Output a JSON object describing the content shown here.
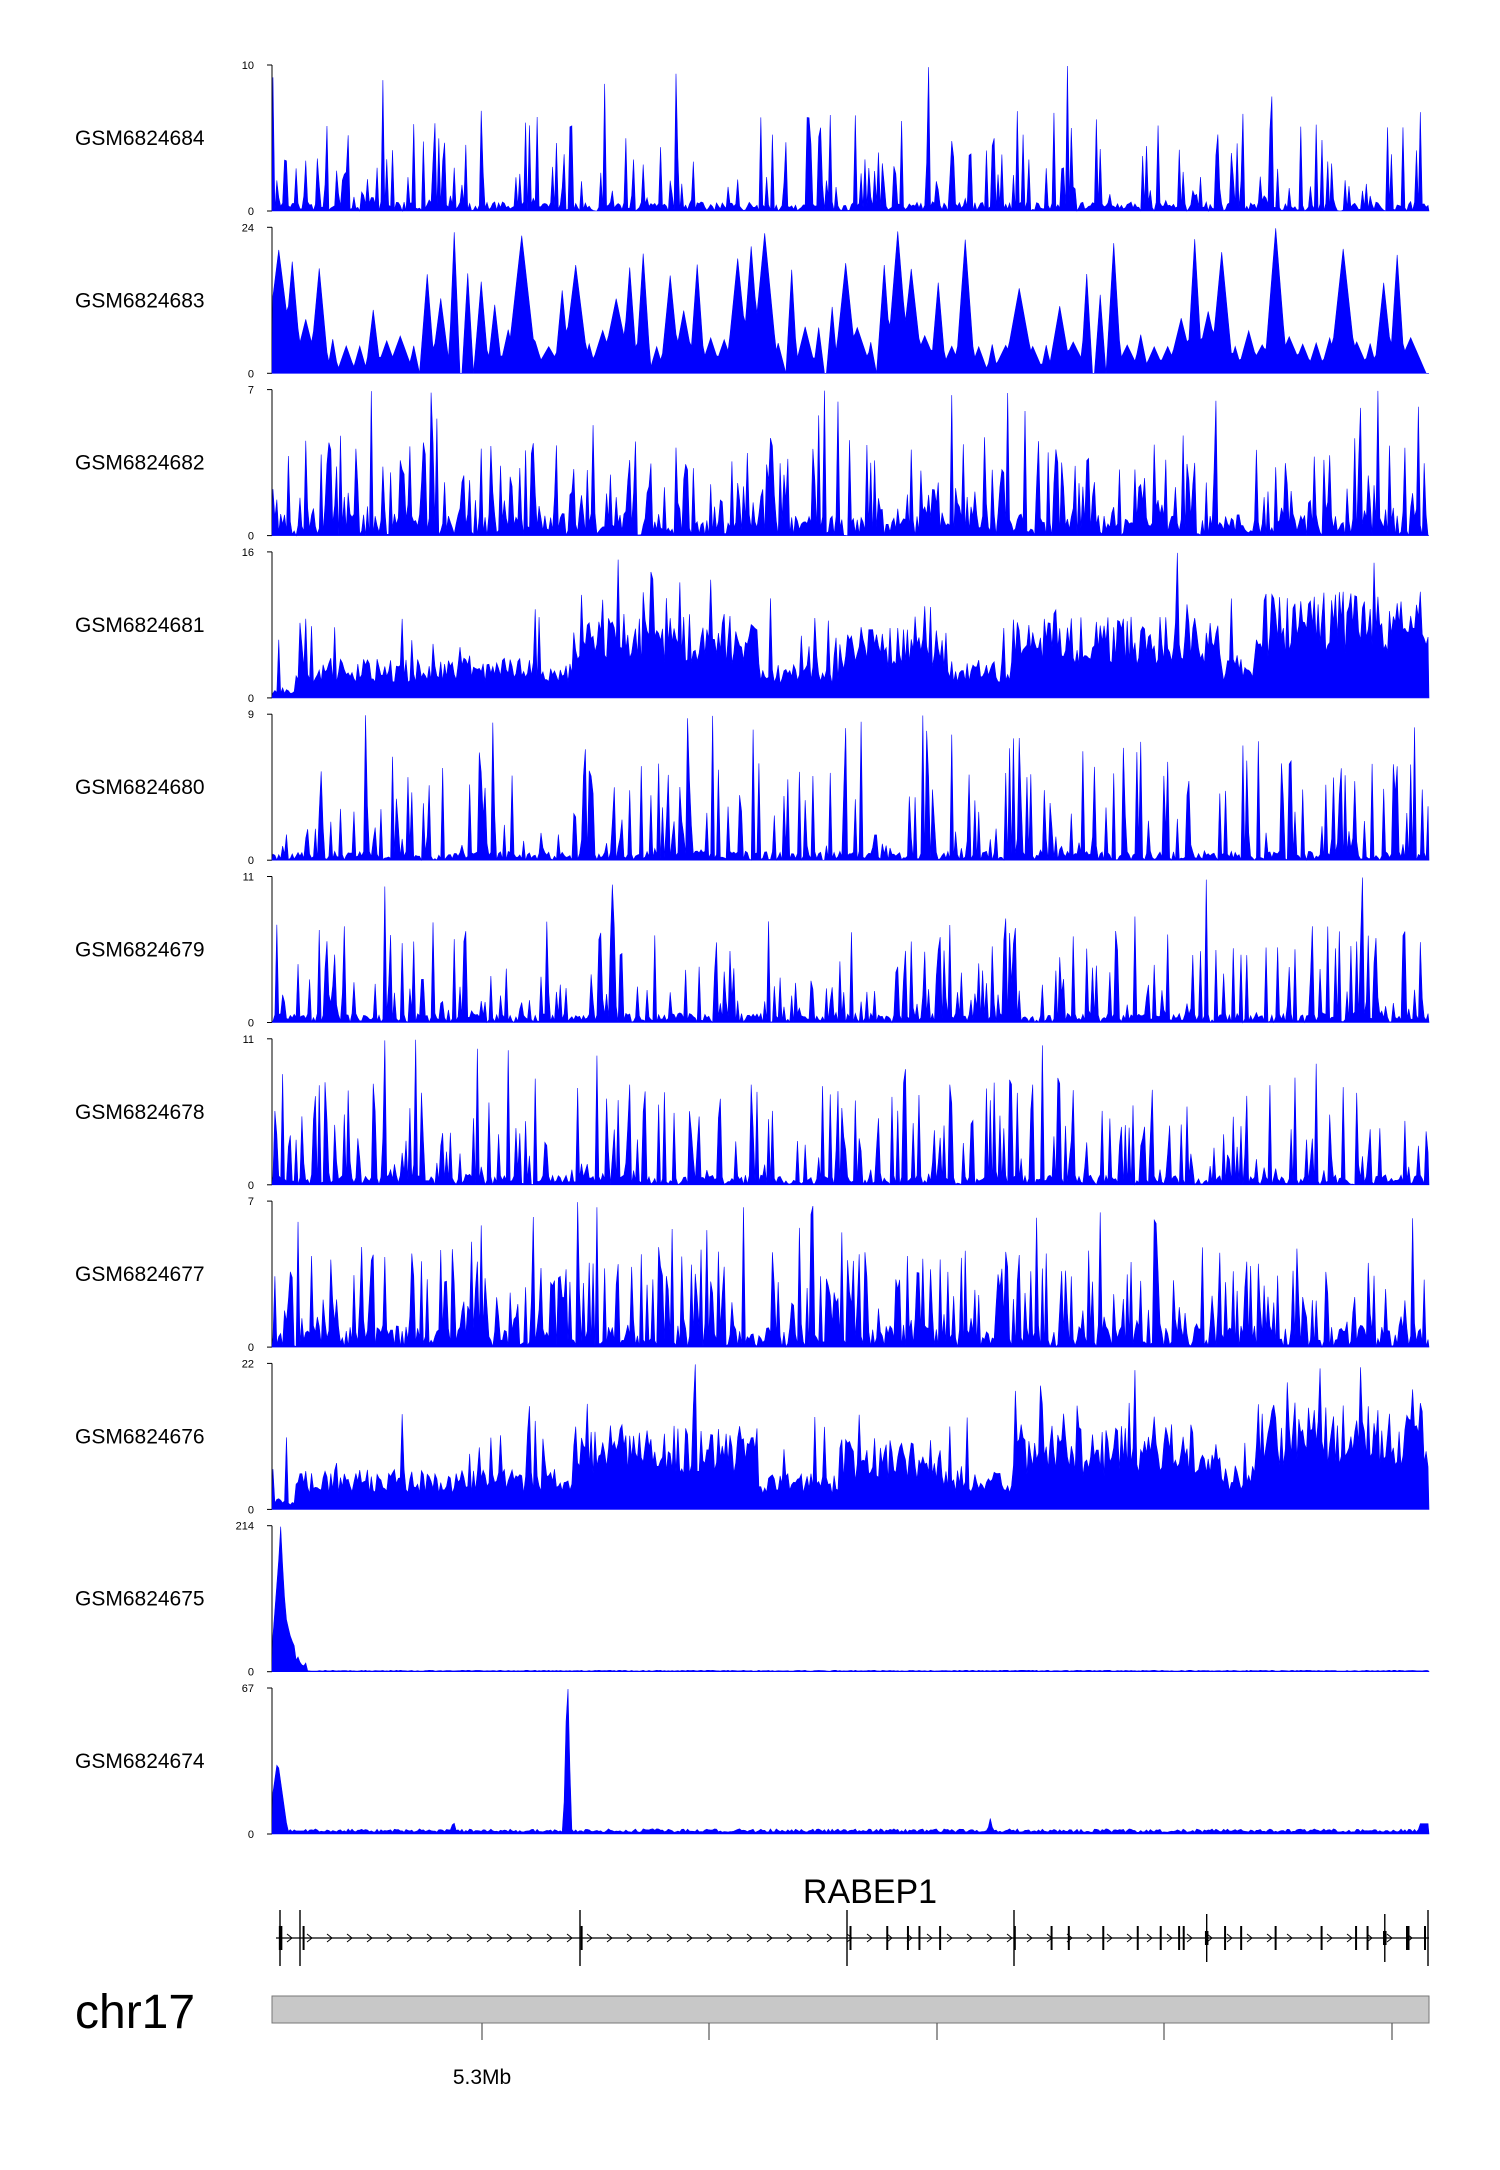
{
  "chart_data": {
    "type": "area",
    "chromosome": "chr17",
    "coordinate_tick_label": "5.3Mb",
    "color": "#0000ff",
    "gene": {
      "name": "RABEP1",
      "exon_count": 26
    },
    "tracks": [
      {
        "name": "GSM6824684",
        "ymin": 0,
        "ymax": 10,
        "pattern": "spiky",
        "peak": 10
      },
      {
        "name": "GSM6824683",
        "ymin": 0,
        "ymax": 24,
        "pattern": "sparse",
        "peak": 24
      },
      {
        "name": "GSM6824682",
        "ymin": 0,
        "ymax": 7,
        "pattern": "dense",
        "peak": 7
      },
      {
        "name": "GSM6824681",
        "ymin": 0,
        "ymax": 16,
        "pattern": "broad",
        "peak": 16
      },
      {
        "name": "GSM6824680",
        "ymin": 0,
        "ymax": 9,
        "pattern": "spiky",
        "peak": 9
      },
      {
        "name": "GSM6824679",
        "ymin": 0,
        "ymax": 11,
        "pattern": "spiky",
        "peak": 11
      },
      {
        "name": "GSM6824678",
        "ymin": 0,
        "ymax": 11,
        "pattern": "spiky",
        "peak": 11
      },
      {
        "name": "GSM6824677",
        "ymin": 0,
        "ymax": 7,
        "pattern": "dense",
        "peak": 7
      },
      {
        "name": "GSM6824676",
        "ymin": 0,
        "ymax": 22,
        "pattern": "broad",
        "peak": 22
      },
      {
        "name": "GSM6824675",
        "ymin": 0,
        "ymax": 214,
        "pattern": "promoter",
        "peak": 214
      },
      {
        "name": "GSM6824674",
        "ymin": 0,
        "ymax": 67,
        "pattern": "twopeak",
        "peak": 67
      }
    ]
  }
}
